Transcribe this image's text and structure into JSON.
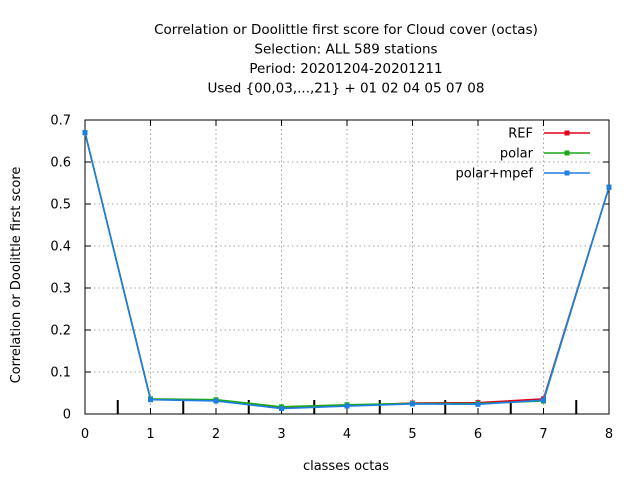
{
  "chart_data": {
    "type": "line",
    "title_lines": [
      "Correlation or Doolittle first score  for Cloud cover (octas)",
      "Selection: ALL    589 stations",
      "Period: 20201204-20201211",
      "Used {00,03,...,21} + 01 02 04 05 07 08"
    ],
    "xlabel": "classes octas",
    "ylabel": "Correlation or Doolittle first score",
    "xlim": [
      0,
      8
    ],
    "ylim": [
      0,
      0.7
    ],
    "x_ticks": [
      0,
      1,
      2,
      3,
      4,
      5,
      6,
      7,
      8
    ],
    "x_tick_labels": [
      "0",
      "1",
      "2",
      "3",
      "4",
      "5",
      "6",
      "7",
      "8"
    ],
    "y_ticks": [
      0,
      0.1,
      0.2,
      0.3,
      0.4,
      0.5,
      0.6,
      0.7
    ],
    "y_tick_labels": [
      "0",
      "0.1",
      "0.2",
      "0.3",
      "0.4",
      "0.5",
      "0.6",
      "0.7"
    ],
    "grid": true,
    "legend_position": "top-right",
    "class_boundaries": [
      0.5,
      1.5,
      2.5,
      3.5,
      4.5,
      5.5,
      6.5,
      7.5
    ],
    "x": [
      0,
      1,
      2,
      3,
      4,
      5,
      6,
      7,
      8
    ],
    "series": [
      {
        "name": "REF",
        "color": "#e0001b",
        "values": [
          0.67,
          0.035,
          0.032,
          0.014,
          0.02,
          0.026,
          0.027,
          0.036,
          0.54
        ]
      },
      {
        "name": "polar",
        "color": "#18a818",
        "values": [
          0.67,
          0.036,
          0.034,
          0.017,
          0.022,
          0.025,
          0.025,
          0.031,
          0.54
        ]
      },
      {
        "name": "polar+mpef",
        "color": "#1f7fe0",
        "values": [
          0.67,
          0.034,
          0.031,
          0.013,
          0.019,
          0.024,
          0.023,
          0.033,
          0.54
        ]
      }
    ]
  }
}
